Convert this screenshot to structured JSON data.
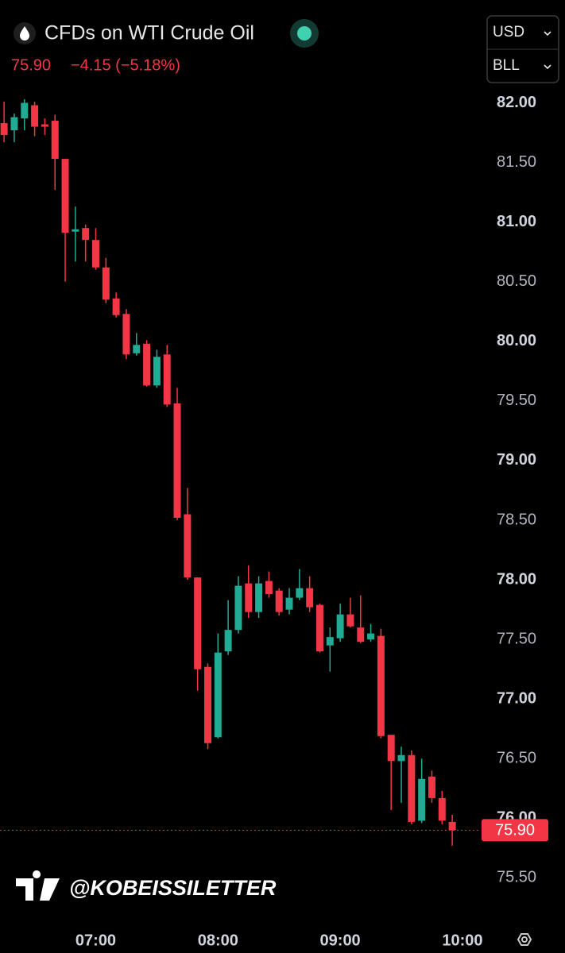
{
  "header": {
    "title": "CFDs on WTI Crude Oil",
    "change": "−4.15 (−5.18%)",
    "currency": "USD",
    "unit": "BLL",
    "watermark": "@KOBEISSILETTER"
  },
  "chart_data": {
    "type": "candlestick",
    "x": [
      "06:15",
      "06:20",
      "06:25",
      "06:30",
      "06:35",
      "06:40",
      "06:45",
      "06:50",
      "06:55",
      "07:00",
      "07:05",
      "07:10",
      "07:15",
      "07:20",
      "07:25",
      "07:30",
      "07:35",
      "07:40",
      "07:45",
      "07:50",
      "07:55",
      "08:00",
      "08:05",
      "08:10",
      "08:15",
      "08:20",
      "08:25",
      "08:30",
      "08:35",
      "08:40",
      "08:45",
      "08:50",
      "08:55",
      "09:00",
      "09:05",
      "09:10",
      "09:15",
      "09:20",
      "09:25",
      "09:30",
      "09:35",
      "09:40",
      "09:45",
      "09:50",
      "09:55"
    ],
    "open": [
      81.83,
      81.77,
      81.87,
      81.98,
      81.82,
      81.85,
      81.53,
      80.92,
      80.95,
      80.85,
      80.62,
      80.36,
      80.23,
      79.9,
      79.98,
      79.63,
      79.89,
      79.48,
      78.55,
      78.02,
      77.27,
      76.68,
      77.4,
      77.58,
      77.97,
      77.73,
      77.99,
      77.91,
      77.75,
      77.85,
      77.93,
      77.79,
      77.45,
      77.51,
      77.71,
      77.6,
      77.5,
      77.53,
      76.7,
      76.48,
      76.53,
      75.98,
      76.35,
      76.17,
      75.97
    ],
    "high": [
      82.01,
      81.91,
      82.03,
      82.01,
      81.87,
      81.9,
      81.53,
      81.13,
      80.98,
      80.95,
      80.7,
      80.41,
      80.27,
      80.07,
      80.01,
      79.93,
      79.97,
      79.61,
      78.77,
      78.02,
      77.3,
      77.55,
      77.83,
      78.03,
      78.12,
      78.03,
      78.07,
      77.93,
      77.93,
      78.09,
      78.03,
      77.8,
      77.6,
      77.8,
      77.85,
      77.87,
      77.63,
      77.59,
      76.7,
      76.6,
      76.57,
      76.5,
      76.4,
      76.23,
      76.03
    ],
    "low": [
      81.67,
      81.67,
      81.77,
      81.72,
      81.73,
      81.27,
      80.5,
      80.67,
      80.67,
      80.6,
      80.32,
      80.2,
      79.85,
      79.88,
      79.62,
      79.61,
      79.45,
      78.5,
      78.0,
      77.07,
      76.58,
      76.67,
      77.37,
      77.55,
      77.68,
      77.68,
      77.85,
      77.7,
      77.71,
      77.83,
      77.73,
      77.39,
      77.23,
      77.48,
      77.6,
      77.47,
      77.48,
      76.67,
      76.07,
      76.13,
      75.95,
      75.96,
      76.13,
      75.95,
      75.77
    ],
    "close": [
      81.73,
      81.88,
      82.0,
      81.8,
      81.8,
      81.53,
      80.91,
      80.94,
      80.85,
      80.62,
      80.35,
      80.22,
      79.89,
      79.97,
      79.63,
      79.87,
      79.47,
      78.52,
      78.02,
      77.25,
      76.63,
      77.39,
      77.58,
      77.95,
      77.73,
      77.97,
      77.88,
      77.73,
      77.85,
      77.93,
      77.77,
      77.4,
      77.52,
      77.71,
      77.61,
      77.48,
      77.55,
      76.69,
      76.48,
      76.53,
      75.97,
      76.33,
      76.17,
      75.98,
      75.9
    ],
    "up_color": "#22ab94",
    "down_color": "#f23645",
    "last_price": {
      "value": 75.9,
      "label": "75.90"
    },
    "xlim": [
      "06:13",
      "10:09"
    ],
    "xticks": [
      "07:00",
      "08:00",
      "09:00",
      "10:00"
    ],
    "ylim": [
      75.27,
      82.13
    ],
    "yticks": [
      {
        "value": 75.5,
        "label": "75.50"
      },
      {
        "value": 76,
        "label": "76.00"
      },
      {
        "value": 76.5,
        "label": "76.50"
      },
      {
        "value": 77,
        "label": "77.00"
      },
      {
        "value": 77.5,
        "label": "77.50"
      },
      {
        "value": 78,
        "label": "78.00"
      },
      {
        "value": 78.5,
        "label": "78.50"
      },
      {
        "value": 79,
        "label": "79.00"
      },
      {
        "value": 79.5,
        "label": "79.50"
      },
      {
        "value": 80,
        "label": "80.00"
      },
      {
        "value": 80.5,
        "label": "80.50"
      },
      {
        "value": 81,
        "label": "81.00"
      },
      {
        "value": 81.5,
        "label": "81.50"
      },
      {
        "value": 82,
        "label": "82.00"
      }
    ]
  }
}
